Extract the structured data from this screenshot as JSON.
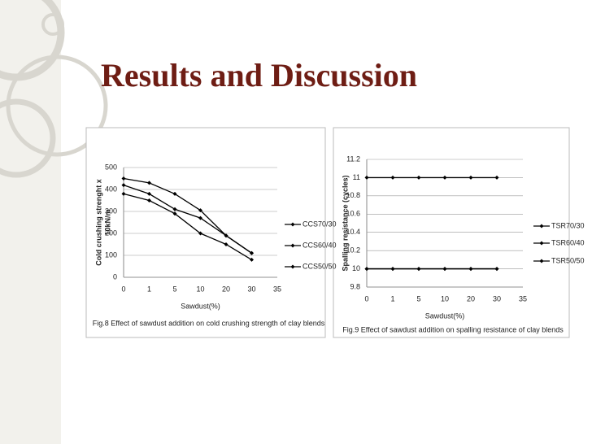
{
  "slide_title": "Results and Discussion",
  "chart_data": [
    {
      "type": "line",
      "caption": "Fig.8 Effect of sawdust addition on cold crushing strength of clay blends",
      "xlabel": "Sawdust(%)",
      "ylabel": [
        "Cold crushing strenght x",
        "10kN/m"
      ],
      "categories": [
        "0",
        "1",
        "5",
        "10",
        "20",
        "30",
        "35"
      ],
      "ylim": [
        0,
        500
      ],
      "yticks": [
        0,
        100,
        200,
        300,
        400,
        500
      ],
      "series": [
        {
          "name": "CCS70/30",
          "color": "#000000",
          "values": [
            450,
            430,
            380,
            305,
            190,
            110,
            null
          ]
        },
        {
          "name": "CCS60/40",
          "color": "#000000",
          "values": [
            420,
            380,
            310,
            270,
            190,
            110,
            null
          ]
        },
        {
          "name": "CCS50/50",
          "color": "#000000",
          "values": [
            380,
            350,
            290,
            200,
            150,
            80,
            null
          ]
        }
      ]
    },
    {
      "type": "line",
      "caption": "Fig.9 Effect of sawdust addition on spalling resistance of clay blends",
      "xlabel": "Sawdust(%)",
      "ylabel": [
        "Spalling resistance (cycles)"
      ],
      "categories": [
        "0",
        "1",
        "5",
        "10",
        "20",
        "30",
        "35"
      ],
      "ylim": [
        9.8,
        11.2
      ],
      "yticks": [
        9.8,
        10,
        10.2,
        10.4,
        10.6,
        10.8,
        11,
        11.2
      ],
      "series": [
        {
          "name": "TSR70/30",
          "color": "#000000",
          "values": [
            11,
            11,
            11,
            11,
            11,
            11,
            null
          ]
        },
        {
          "name": "TSR60/40",
          "color": "#000000",
          "values": [
            10,
            10,
            10,
            10,
            10,
            10,
            null
          ]
        },
        {
          "name": "TSR50/50",
          "color": "#000000",
          "values": [
            10,
            10,
            10,
            10,
            10,
            10,
            null
          ]
        }
      ]
    }
  ]
}
